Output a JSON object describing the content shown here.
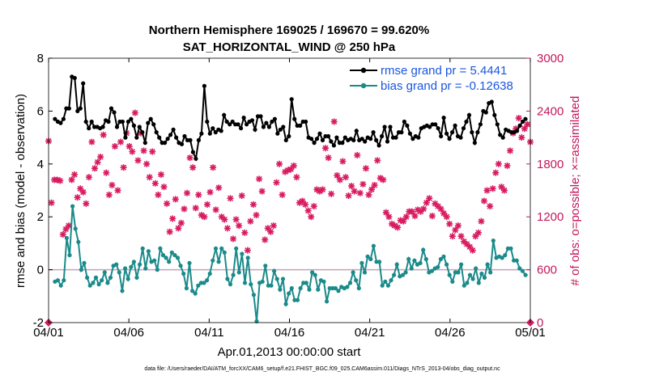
{
  "chart_data": {
    "type": "line",
    "title": "Northern Hemisphere 169025 / 169670 = 99.620%",
    "subtitle": "SAT_HORIZONTAL_WIND @ 250 hPa",
    "xlabel": "Apr.01,2013 00:00:00 start",
    "ylabel": "rmse and bias (model - observation)",
    "ylabel_right": "# of obs: o=possible; ×=assimilated",
    "footnote": "data file: /Users/raeder/DAI/ATM_forcXX/CAM6_setup/f.e21.FHIST_BGC.f09_025.CAM6assim.011/Diags_NTrS_2013-04/obs_diag_output.nc",
    "ylim": [
      -2,
      8
    ],
    "ylim_right": [
      0,
      3000
    ],
    "yticks": [
      "-2",
      "0",
      "2",
      "4",
      "6",
      "8"
    ],
    "yticks_right": [
      "0",
      "600",
      "1200",
      "1800",
      "2400",
      "3000"
    ],
    "xlim": [
      0,
      30
    ],
    "xticks": [
      {
        "pos": 0,
        "label": "04/01"
      },
      {
        "pos": 5,
        "label": "04/06"
      },
      {
        "pos": 10,
        "label": "04/11"
      },
      {
        "pos": 15,
        "label": "04/16"
      },
      {
        "pos": 20,
        "label": "04/21"
      },
      {
        "pos": 25,
        "label": "04/26"
      },
      {
        "pos": 30,
        "label": "05/01"
      }
    ],
    "legend": [
      "rmse grand pr = 5.4441",
      "bias grand pr = -0.12638"
    ],
    "legend_position": "top-right",
    "series": [
      {
        "name": "rmse",
        "color": "#000000",
        "values": [
          5.7,
          5.6,
          5.55,
          5.7,
          6.1,
          6.1,
          7.3,
          7.25,
          6.0,
          6.1,
          7.05,
          5.6,
          5.35,
          5.6,
          5.4,
          5.4,
          5.35,
          5.4,
          5.65,
          5.6,
          6.1,
          5.95,
          5.4,
          5.6,
          5.6,
          5.0,
          5.6,
          5.7,
          5.45,
          5.0,
          5.4,
          5.2,
          4.8,
          5.55,
          5.7,
          5.5,
          5.2,
          5.0,
          4.8,
          4.8,
          4.95,
          5.1,
          5.3,
          5.0,
          4.8,
          4.75,
          5.05,
          4.9,
          4.9,
          4.45,
          4.2,
          4.9,
          5.15,
          6.95,
          5.6,
          5.15,
          5.35,
          5.2,
          5.3,
          5.25,
          5.85,
          5.6,
          5.5,
          5.6,
          5.5,
          5.5,
          5.35,
          5.75,
          5.5,
          5.6,
          5.65,
          5.3,
          5.8,
          5.8,
          5.4,
          5.55,
          5.4,
          5.6,
          5.7,
          5.15,
          5.3,
          5.4,
          4.9,
          5.05,
          6.45,
          5.7,
          5.45,
          5.45,
          5.6,
          5.6,
          5.0,
          4.95,
          4.8,
          4.95,
          5.15,
          4.9,
          5.05,
          5.05,
          4.85,
          4.7,
          5.0,
          4.8,
          4.8,
          5.0,
          4.9,
          4.95,
          4.9,
          5.25,
          4.9,
          4.95,
          4.85,
          5.0,
          4.95,
          5.2,
          4.9,
          4.7,
          5.05,
          5.4,
          4.85,
          5.4,
          5.0,
          5.0,
          5.2,
          5.2,
          5.6,
          5.45,
          5.15,
          4.95,
          5.05,
          5.0,
          5.35,
          5.4,
          5.45,
          5.4,
          5.5,
          5.5,
          5.35,
          5.05,
          5.75,
          5.15,
          4.95,
          5.2,
          5.45,
          5.05,
          5.0,
          5.35,
          5.6,
          5.85,
          5.2,
          4.8,
          5.2,
          5.5,
          6.0,
          5.95,
          6.3,
          6.35,
          5.85,
          5.5,
          5.1,
          5.0,
          5.3,
          5.25,
          5.2,
          5.2,
          5.25,
          5.45,
          5.6,
          5.7
        ]
      },
      {
        "name": "bias",
        "color": "#1b8a8a",
        "values": [
          -0.45,
          -0.4,
          -0.6,
          -0.4,
          1.2,
          0.55,
          2.4,
          1.55,
          1.05,
          0.0,
          0.25,
          -0.3,
          -0.6,
          -0.5,
          -0.3,
          -0.55,
          -0.4,
          -0.1,
          -0.5,
          -0.3,
          0.15,
          0.2,
          -0.1,
          -0.8,
          0.05,
          -0.35,
          0.1,
          0.3,
          -0.3,
          0.2,
          0.8,
          0.05,
          0.7,
          0.3,
          0.35,
          0.0,
          0.8,
          0.55,
          0.45,
          0.3,
          0.65,
          0.55,
          0.45,
          0.15,
          -0.15,
          -0.7,
          0.25,
          -0.8,
          -0.9,
          -0.6,
          -0.5,
          -0.5,
          -0.4,
          -0.15,
          0.35,
          0.8,
          0.3,
          0.8,
          0.65,
          -0.35,
          -0.55,
          -0.2,
          0.8,
          -0.1,
          0.6,
          -0.5,
          0.45,
          -0.55,
          -0.95,
          -1.95,
          -0.5,
          -0.45,
          0.15,
          -0.6,
          -0.6,
          -0.05,
          -0.35,
          -0.75,
          -0.35,
          -1.3,
          -0.9,
          -0.7,
          -1.15,
          -1.15,
          -0.7,
          -0.5,
          -0.5,
          -0.75,
          -0.1,
          -0.2,
          -0.75,
          -0.4,
          -0.45,
          -1.2,
          -0.7,
          -0.7,
          -0.7,
          -0.8,
          -0.65,
          -0.7,
          -0.65,
          -0.5,
          -0.1,
          -0.4,
          -0.7,
          0.25,
          -0.1,
          0.5,
          0.4,
          0.9,
          0.3,
          0.3,
          -0.6,
          -0.45,
          -0.6,
          -0.4,
          -0.2,
          0.2,
          -0.25,
          -0.2,
          -0.1,
          0.4,
          0.05,
          0.35,
          0.2,
          0.25,
          0.75,
          0.4,
          -0.1,
          -0.05,
          0.05,
          0.1,
          0.4,
          0.5,
          0.2,
          -0.2,
          -0.45,
          -0.1,
          -0.1,
          0.2,
          -0.6,
          -0.5,
          -0.2,
          -0.35,
          0.05,
          -0.5,
          -0.15,
          -0.3,
          0.2,
          -0.1,
          1.1,
          0.45,
          0.5,
          0.45,
          0.55,
          0.8,
          0.8,
          0.35,
          0.35,
          0.05,
          -0.05,
          -0.2
        ]
      },
      {
        "name": "obs possible/assimilated",
        "color": "#d81b60",
        "axis": "right",
        "values": [
          2060,
          1360,
          1620,
          1620,
          1610,
          1000,
          1060,
          1100,
          1620,
          1680,
          1420,
          1520,
          1480,
          1350,
          1650,
          2050,
          1750,
          1820,
          1880,
          2130,
          1700,
          1450,
          1560,
          2000,
          1500,
          2050,
          1760,
          2150,
          2000,
          1940,
          2380,
          1840,
          2150,
          1950,
          1800,
          1650,
          1940,
          1580,
          1450,
          1680,
          1540,
          1350,
          1030,
          1180,
          1400,
          1070,
          1130,
          1290,
          1470,
          1870,
          1760,
          1300,
          1450,
          1220,
          1200,
          1340,
          1480,
          1760,
          1280,
          1530,
          1200,
          1170,
          1070,
          1410,
          950,
          1170,
          1100,
          1440,
          1020,
          820,
          1150,
          1340,
          1220,
          1630,
          1490,
          940,
          1070,
          1030,
          1100,
          1590,
          1800,
          1450,
          1710,
          1730,
          1740,
          1780,
          1650,
          1360,
          1380,
          1340,
          1270,
          1200,
          1320,
          1510,
          1490,
          1510,
          1980,
          1870,
          1460,
          2280,
          1670,
          1620,
          1830,
          1650,
          1440,
          1550,
          1490,
          1900,
          1470,
          1570,
          1750,
          1450,
          1510,
          1560,
          1840,
          1640,
          1620,
          1250,
          1200,
          1120,
          1100,
          1080,
          1160,
          1150,
          1200,
          1260,
          1260,
          1210,
          1280,
          1260,
          1290,
          1360,
          1410,
          1210,
          1350,
          1320,
          1290,
          1240,
          1200,
          1120,
          980,
          1050,
          1100,
          980,
          920,
          890,
          860,
          820,
          980,
          1020,
          1150,
          1380,
          1500,
          1320,
          1520,
          1700,
          1800,
          1540,
          1500,
          1780,
          1950,
          2150,
          2200,
          2320,
          2100,
          2200,
          2250,
          2050
        ]
      }
    ]
  }
}
